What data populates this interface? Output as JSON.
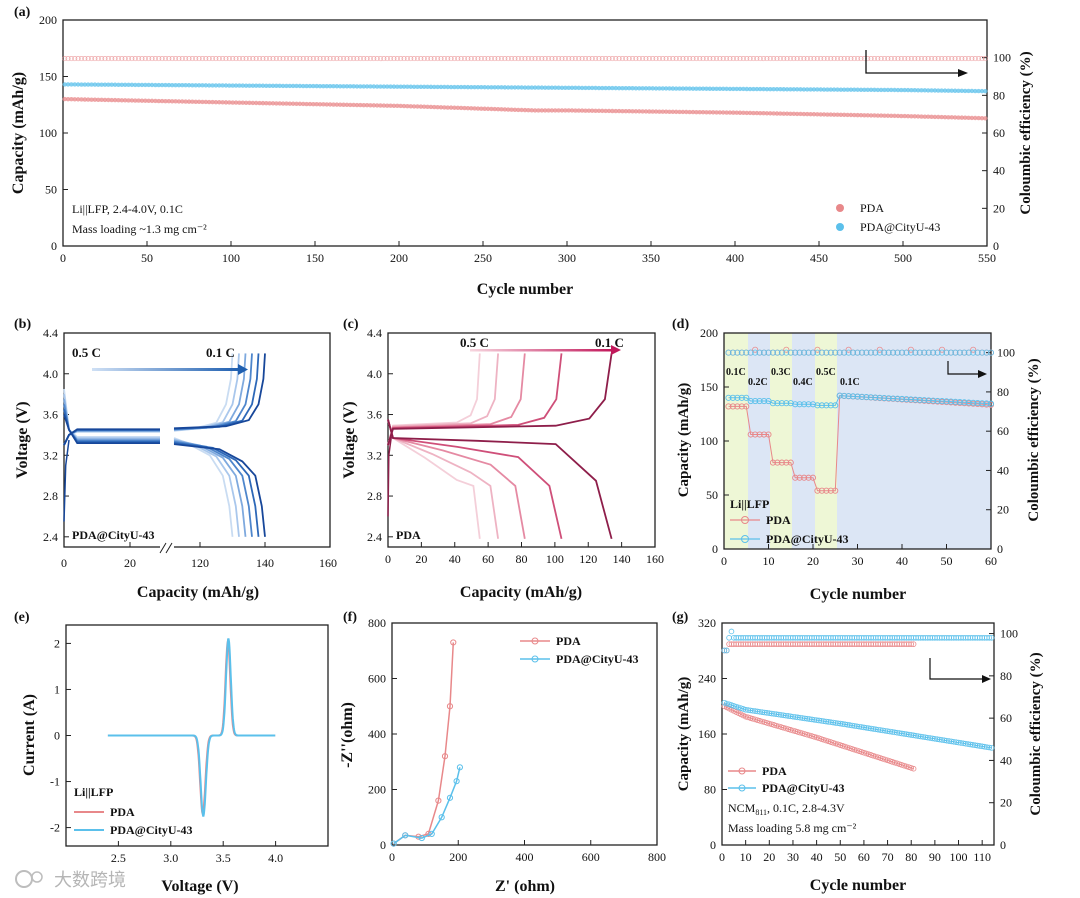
{
  "colors": {
    "pda": "#e8888a",
    "pda_dark": "#c2185b",
    "cityu": "#5bc0eb",
    "cityu_dark": "#1f5fb0",
    "bg_blue": "#dce6f5",
    "bg_green": "#eef7d6"
  },
  "watermark": "大数跨境",
  "chart_data": [
    {
      "id": "a",
      "panel_label": "(a)",
      "type": "scatter",
      "xlabel": "Cycle number",
      "ylabel": "Capacity (mAh/g)",
      "y2label": "Coloumbic efficiency (%)",
      "xlim": [
        0,
        550
      ],
      "ylim": [
        0,
        200
      ],
      "y2lim": [
        0,
        120
      ],
      "xticks": [
        0,
        50,
        100,
        150,
        200,
        250,
        300,
        350,
        400,
        450,
        500,
        550
      ],
      "yticks": [
        0,
        50,
        100,
        150,
        200
      ],
      "y2ticks": [
        0,
        20,
        40,
        60,
        80,
        100
      ],
      "annotations": [
        "Li||LFP, 2.4-4.0V, 0.1C",
        "Mass loading ~1.3 mg cm⁻²"
      ],
      "legend": [
        "PDA",
        "PDA@CityU-43"
      ],
      "series": [
        {
          "name": "PDA capacity",
          "axis": "left",
          "x": [
            1,
            100,
            200,
            280,
            300,
            400,
            500,
            550
          ],
          "y": [
            130,
            127,
            124,
            120,
            120,
            118,
            115,
            113
          ]
        },
        {
          "name": "PDA@CityU-43 capacity",
          "axis": "left",
          "x": [
            1,
            100,
            200,
            300,
            400,
            500,
            550
          ],
          "y": [
            143,
            142,
            141,
            140,
            139,
            138,
            137
          ]
        },
        {
          "name": "PDA efficiency",
          "axis": "right",
          "x": [
            1,
            550
          ],
          "y": [
            99.5,
            99.5
          ]
        }
      ]
    },
    {
      "id": "b",
      "panel_label": "(b)",
      "type": "line",
      "xlabel": "Capacity (mAh/g)",
      "ylabel": "Voltage (V)",
      "xtick_labels": [
        "0",
        "20",
        "120",
        "140",
        "160"
      ],
      "yticks": [
        2.4,
        2.8,
        3.2,
        3.6,
        4.0,
        4.4
      ],
      "ylim": [
        2.3,
        4.4
      ],
      "rate_labels": [
        "0.5 C",
        "0.1 C"
      ],
      "sample": "PDA@CityU-43",
      "curve_end_capacities": [
        130,
        132,
        134,
        136,
        138,
        140
      ]
    },
    {
      "id": "c",
      "panel_label": "(c)",
      "type": "line",
      "xlabel": "Capacity (mAh/g)",
      "ylabel": "Voltage (V)",
      "xlim": [
        0,
        160
      ],
      "xticks": [
        0,
        20,
        40,
        60,
        80,
        100,
        120,
        140,
        160
      ],
      "yticks": [
        2.4,
        2.8,
        3.2,
        3.6,
        4.0,
        4.4
      ],
      "ylim": [
        2.3,
        4.4
      ],
      "rate_labels": [
        "0.5 C",
        "0.1 C"
      ],
      "sample": "PDA",
      "curve_end_capacities": [
        55,
        66,
        82,
        104,
        134
      ]
    },
    {
      "id": "d",
      "panel_label": "(d)",
      "type": "scatter",
      "xlabel": "Cycle number",
      "ylabel": "Capacity (mAh/g)",
      "y2label": "Coloumbic efficiency (%)",
      "xlim": [
        0,
        60
      ],
      "xticks": [
        0,
        10,
        20,
        30,
        40,
        50,
        60
      ],
      "ylim": [
        0,
        200
      ],
      "yticks": [
        0,
        50,
        100,
        150,
        200
      ],
      "y2lim": [
        0,
        110
      ],
      "y2ticks": [
        0,
        20,
        40,
        60,
        80,
        100
      ],
      "rate_labels": [
        "0.1C",
        "0.2C",
        "0.3C",
        "0.4C",
        "0.5C",
        "0.1C"
      ],
      "legend_title": "Li||LFP",
      "legend": [
        "PDA",
        "PDA@CityU-43"
      ],
      "pda_capacity": [
        132,
        106,
        80,
        66,
        54,
        142
      ],
      "cityu_capacity": [
        140,
        137,
        135,
        134,
        133,
        142
      ],
      "efficiency": [
        100,
        100
      ]
    },
    {
      "id": "e",
      "panel_label": "(e)",
      "type": "line",
      "xlabel": "Voltage (V)",
      "ylabel": "Current (A)",
      "xlim": [
        2.0,
        4.5
      ],
      "xticks": [
        2.5,
        3.0,
        3.5,
        4.0
      ],
      "ylim": [
        -2.4,
        2.4
      ],
      "yticks": [
        -2,
        -1,
        0,
        1,
        2
      ],
      "legend_title": "Li||LFP",
      "legend": [
        "PDA",
        "PDA@CityU-43"
      ],
      "peaks": {
        "oxidation_V": 3.55,
        "oxidation_A": 2.1,
        "reduction_V": 3.31,
        "reduction_A": -1.75
      }
    },
    {
      "id": "f",
      "panel_label": "(f)",
      "type": "line",
      "xlabel": "Z' (ohm)",
      "ylabel": "-Z''(ohm)",
      "xlim": [
        0,
        800
      ],
      "xticks": [
        0,
        200,
        400,
        600,
        800
      ],
      "ylim": [
        0,
        800
      ],
      "yticks": [
        0,
        200,
        400,
        600,
        800
      ],
      "legend": [
        "PDA",
        "PDA@CityU-43"
      ],
      "series": [
        {
          "name": "PDA",
          "x": [
            5,
            40,
            80,
            110,
            140,
            160,
            175,
            185
          ],
          "y": [
            5,
            35,
            30,
            40,
            160,
            320,
            500,
            730
          ]
        },
        {
          "name": "PDA@CityU-43",
          "x": [
            5,
            40,
            90,
            120,
            150,
            175,
            195,
            205
          ],
          "y": [
            5,
            35,
            25,
            40,
            100,
            170,
            230,
            280
          ]
        }
      ]
    },
    {
      "id": "g",
      "panel_label": "(g)",
      "type": "scatter",
      "xlabel": "Cycle number",
      "ylabel": "Capacity (mAh/g)",
      "y2label": "Coloumbic efficiency (%)",
      "xlim": [
        0,
        115
      ],
      "xticks": [
        0,
        10,
        20,
        30,
        40,
        50,
        60,
        70,
        80,
        90,
        100,
        110
      ],
      "ylim": [
        0,
        320
      ],
      "yticks": [
        0,
        80,
        160,
        240,
        320
      ],
      "y2lim": [
        0,
        105
      ],
      "y2ticks": [
        0,
        20,
        40,
        60,
        80,
        100
      ],
      "legend": [
        "PDA",
        "PDA@CityU-43"
      ],
      "annotation_lines": [
        "NCM",
        "811",
        ", 0.1C, 2.8-4.3V",
        "Mass loading 5.8 mg cm⁻²"
      ],
      "series": [
        {
          "name": "PDA capacity",
          "axis": "left",
          "x": [
            1,
            10,
            40,
            81
          ],
          "y": [
            200,
            185,
            155,
            110
          ]
        },
        {
          "name": "PDA@CityU-43 capacity",
          "axis": "left",
          "x": [
            1,
            10,
            50,
            114
          ],
          "y": [
            205,
            195,
            175,
            140
          ]
        },
        {
          "name": "PDA efficiency",
          "axis": "right",
          "x": [
            2,
            81
          ],
          "y": [
            95,
            95
          ]
        },
        {
          "name": "PDA@CityU-43 efficiency",
          "axis": "right",
          "x": [
            2,
            114
          ],
          "y": [
            98,
            98
          ]
        }
      ]
    }
  ]
}
